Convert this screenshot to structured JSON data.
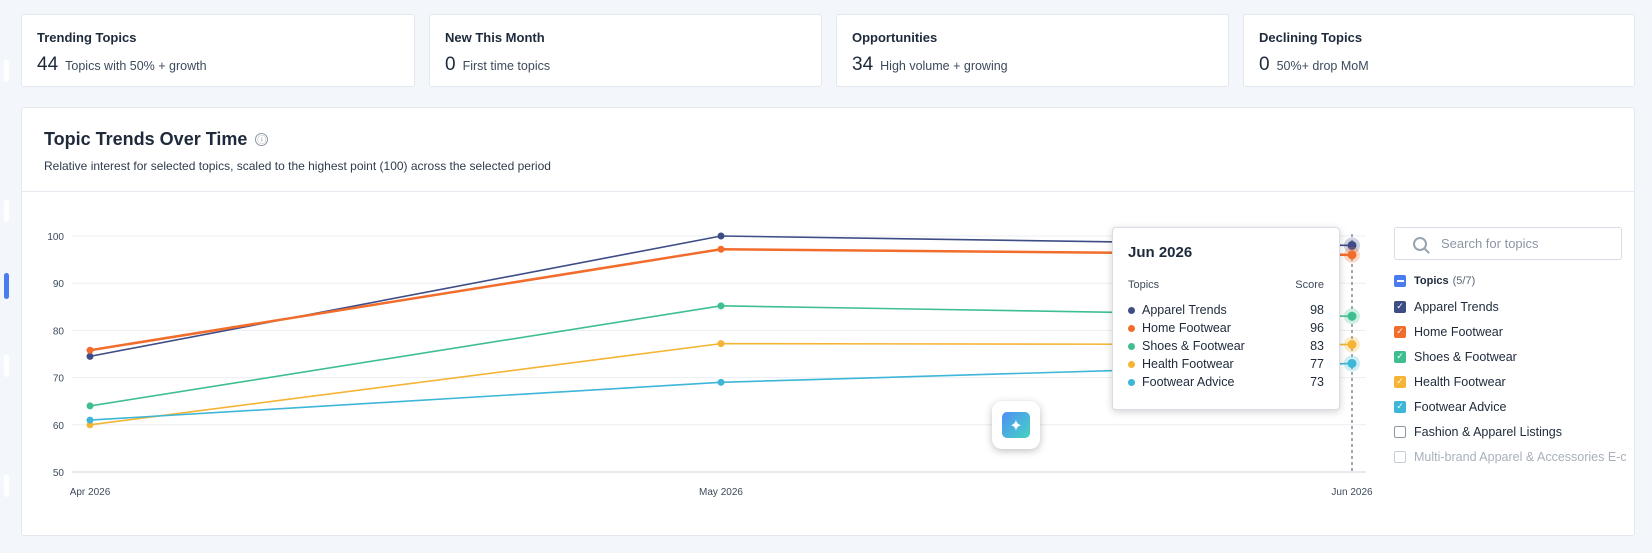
{
  "stats": [
    {
      "title": "Trending Topics",
      "value": "44",
      "desc": "Topics with 50% + growth"
    },
    {
      "title": "New This Month",
      "value": "0",
      "desc": "First time topics"
    },
    {
      "title": "Opportunities",
      "value": "34",
      "desc": "High volume + growing"
    },
    {
      "title": "Declining Topics",
      "value": "0",
      "desc": "50%+ drop MoM"
    }
  ],
  "chart_card": {
    "title": "Topic Trends Over Time",
    "info_icon": "ⓘ",
    "subtitle": "Relative interest for selected topics, scaled to the highest point (100) across the selected period"
  },
  "chart_data": {
    "type": "line",
    "x": [
      "Apr 2026",
      "May 2026",
      "Jun 2026"
    ],
    "ylim": [
      50,
      100
    ],
    "yticks": [
      100,
      90,
      80,
      70,
      60,
      50
    ],
    "grid": true,
    "series": [
      {
        "name": "Apparel Trends",
        "color": "#3f4d86",
        "values": [
          74.5,
          100,
          98
        ]
      },
      {
        "name": "Home Footwear",
        "color": "#f26d2c",
        "values": [
          75.8,
          97.2,
          96
        ]
      },
      {
        "name": "Shoes & Footwear",
        "color": "#3fbf90",
        "values": [
          64,
          85.2,
          83
        ]
      },
      {
        "name": "Health Footwear",
        "color": "#f5b433",
        "values": [
          60,
          77.2,
          77
        ]
      },
      {
        "name": "Footwear Advice",
        "color": "#3db6d8",
        "values": [
          61,
          69,
          73
        ]
      }
    ]
  },
  "tooltip": {
    "title": "Jun 2026",
    "col_topic": "Topics",
    "col_score": "Score",
    "rows": [
      {
        "name": "Apparel Trends",
        "score": "98",
        "color": "#3f4d86"
      },
      {
        "name": "Home Footwear",
        "score": "96",
        "color": "#f26d2c"
      },
      {
        "name": "Shoes & Footwear",
        "score": "83",
        "color": "#3fbf90"
      },
      {
        "name": "Health Footwear",
        "score": "77",
        "color": "#f5b433"
      },
      {
        "name": "Footwear Advice",
        "score": "73",
        "color": "#3db6d8"
      }
    ]
  },
  "ai_button": {
    "icon": "sparkle-chat-icon",
    "glyph": "✦"
  },
  "search": {
    "placeholder": "Search for topics"
  },
  "topics_panel": {
    "label": "Topics",
    "count": "(5/7)",
    "items": [
      {
        "label": "Apparel Trends",
        "checked": true,
        "color": "#3f4d86"
      },
      {
        "label": "Home Footwear",
        "checked": true,
        "color": "#f26d2c"
      },
      {
        "label": "Shoes & Footwear",
        "checked": true,
        "color": "#3fbf90"
      },
      {
        "label": "Health Footwear",
        "checked": true,
        "color": "#f5b433"
      },
      {
        "label": "Footwear Advice",
        "checked": true,
        "color": "#3db6d8"
      },
      {
        "label": "Fashion & Apparel Listings",
        "checked": false,
        "color": "#8c96a4"
      },
      {
        "label": "Multi-brand Apparel & Accessories E-c",
        "checked": false,
        "color": "#8c96a4"
      }
    ]
  }
}
